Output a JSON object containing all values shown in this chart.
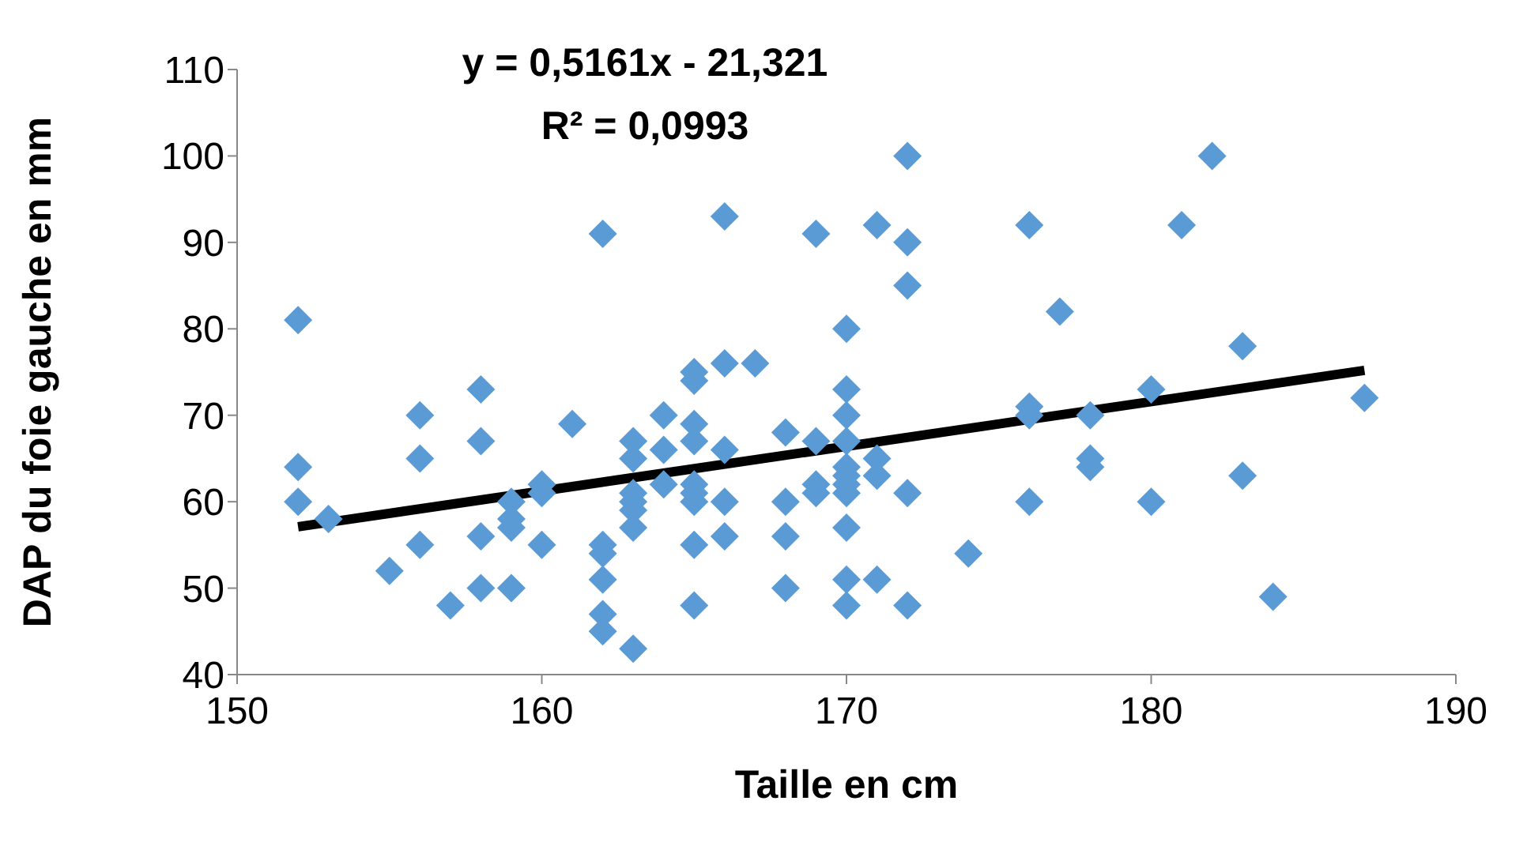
{
  "chart_data": {
    "type": "scatter",
    "xlabel": "Taille en cm",
    "ylabel": "DAP du foie gauche en mm",
    "annotations": [
      "y = 0,5161x - 21,321",
      "R² = 0,0993"
    ],
    "xlim": [
      150,
      190
    ],
    "xticks": [
      150,
      160,
      170,
      180,
      190
    ],
    "ylim": [
      40,
      110
    ],
    "yticks": [
      40,
      50,
      60,
      70,
      80,
      90,
      100,
      110
    ],
    "grid": false,
    "series": [
      {
        "color": "#5b9bd5",
        "marker": "diamond",
        "x": [
          152,
          152,
          152,
          153,
          155,
          156,
          156,
          156,
          157,
          158,
          158,
          158,
          158,
          159,
          159,
          159,
          159,
          160,
          160,
          160,
          161,
          162,
          162,
          162,
          162,
          162,
          162,
          163,
          163,
          163,
          163,
          163,
          163,
          163,
          164,
          164,
          164,
          165,
          165,
          165,
          165,
          165,
          165,
          165,
          165,
          165,
          166,
          166,
          166,
          166,
          166,
          167,
          168,
          168,
          168,
          168,
          169,
          169,
          169,
          169,
          170,
          170,
          170,
          170,
          170,
          170,
          170,
          170,
          170,
          170,
          170,
          171,
          171,
          171,
          171,
          172,
          172,
          172,
          172,
          172,
          174,
          176,
          176,
          176,
          176,
          177,
          178,
          178,
          178,
          180,
          180,
          181,
          182,
          183,
          183,
          184,
          187
        ],
        "values": [
          81,
          64,
          60,
          58,
          52,
          70,
          65,
          55,
          48,
          73,
          67,
          56,
          50,
          60,
          58,
          57,
          50,
          62,
          61,
          55,
          69,
          91,
          55,
          54,
          51,
          47,
          45,
          67,
          65,
          61,
          60,
          59,
          57,
          43,
          70,
          66,
          62,
          75,
          74,
          69,
          67,
          62,
          61,
          60,
          55,
          48,
          93,
          76,
          66,
          60,
          56,
          76,
          68,
          60,
          56,
          50,
          91,
          67,
          62,
          61,
          80,
          73,
          70,
          67,
          64,
          63,
          62,
          61,
          57,
          51,
          48,
          92,
          65,
          63,
          51,
          100,
          90,
          85,
          61,
          48,
          54,
          92,
          71,
          70,
          60,
          82,
          70,
          65,
          64,
          73,
          60,
          92,
          100,
          78,
          63,
          49,
          72
        ]
      },
      {
        "type": "line",
        "color": "#000000",
        "marker": "none",
        "x": [
          152,
          187
        ],
        "values": [
          57.1,
          75.2
        ]
      }
    ]
  }
}
